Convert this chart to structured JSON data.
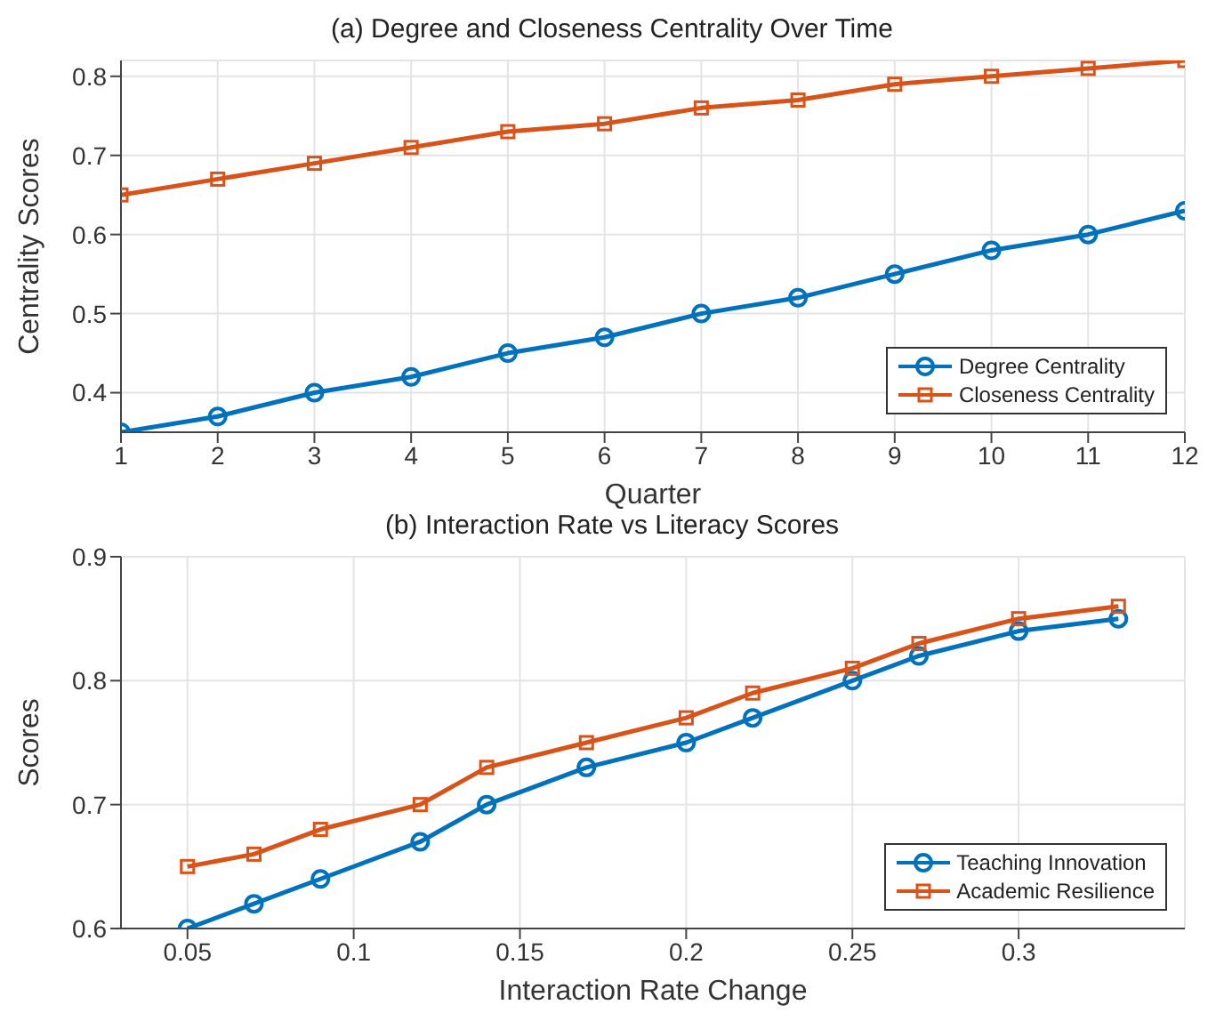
{
  "chart_data": [
    {
      "type": "line",
      "title": "(a) Degree and Closeness Centrality Over Time",
      "xlabel": "Quarter",
      "ylabel": "Centrality Scores",
      "x": [
        1,
        2,
        3,
        4,
        5,
        6,
        7,
        8,
        9,
        10,
        11,
        12
      ],
      "xlim": [
        1,
        12
      ],
      "xticks": [
        1,
        2,
        3,
        4,
        5,
        6,
        7,
        8,
        9,
        10,
        11,
        12
      ],
      "ylim": [
        0.35,
        0.82
      ],
      "yticks": [
        0.4,
        0.5,
        0.6,
        0.7,
        0.8
      ],
      "grid": true,
      "legend": "bottom right",
      "series": [
        {
          "name": "Degree Centrality",
          "color": "#0072bd",
          "marker": "circle",
          "values": [
            0.35,
            0.37,
            0.4,
            0.42,
            0.45,
            0.47,
            0.5,
            0.52,
            0.55,
            0.58,
            0.6,
            0.63
          ]
        },
        {
          "name": "Closeness Centrality",
          "color": "#d95319",
          "marker": "square",
          "values": [
            0.65,
            0.67,
            0.69,
            0.71,
            0.73,
            0.74,
            0.76,
            0.77,
            0.79,
            0.8,
            0.81,
            0.82
          ]
        }
      ]
    },
    {
      "type": "line",
      "title": "(b) Interaction Rate vs Literacy Scores",
      "xlabel": "Interaction Rate Change",
      "ylabel": "Scores",
      "x": [
        0.05,
        0.07,
        0.09,
        0.12,
        0.14,
        0.17,
        0.2,
        0.22,
        0.25,
        0.27,
        0.3,
        0.33
      ],
      "xlim": [
        0.03,
        0.35
      ],
      "xticks": [
        0.05,
        0.1,
        0.15,
        0.2,
        0.25,
        0.3
      ],
      "ylim": [
        0.6,
        0.9
      ],
      "yticks": [
        0.6,
        0.7,
        0.8,
        0.9
      ],
      "grid": true,
      "legend": "bottom right",
      "series": [
        {
          "name": "Teaching Innovation",
          "color": "#0072bd",
          "marker": "circle",
          "values": [
            0.6,
            0.62,
            0.64,
            0.67,
            0.7,
            0.73,
            0.75,
            0.77,
            0.8,
            0.82,
            0.84,
            0.85
          ]
        },
        {
          "name": "Academic Resilience",
          "color": "#d95319",
          "marker": "square",
          "values": [
            0.65,
            0.66,
            0.68,
            0.7,
            0.73,
            0.75,
            0.77,
            0.79,
            0.81,
            0.83,
            0.85,
            0.86
          ]
        }
      ]
    }
  ]
}
